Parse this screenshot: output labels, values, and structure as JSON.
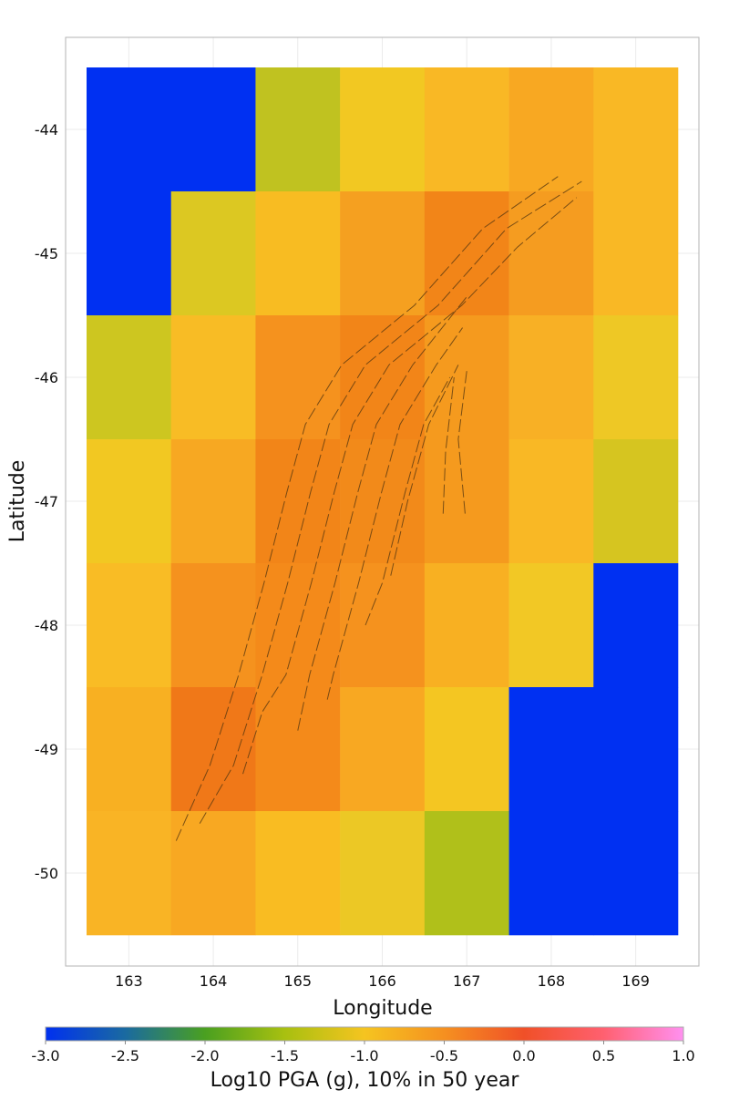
{
  "chart_data": {
    "type": "heatmap",
    "xlabel": "Longitude",
    "ylabel": "Latitude",
    "x": [
      163,
      164,
      165,
      166,
      167,
      168,
      169
    ],
    "y": [
      -44,
      -45,
      -46,
      -47,
      -48,
      -49,
      -50
    ],
    "xlim": [
      162.5,
      169.5
    ],
    "ylim": [
      -50.5,
      -43.5
    ],
    "x_ticks": [
      "163",
      "164",
      "165",
      "166",
      "167",
      "168",
      "169"
    ],
    "y_ticks": [
      "-44",
      "-45",
      "-46",
      "-47",
      "-48",
      "-49",
      "-50"
    ],
    "grid": true,
    "values": [
      [
        -3.0,
        -3.0,
        -1.3,
        -1.0,
        -0.85,
        -0.7,
        -0.85
      ],
      [
        -3.0,
        -1.15,
        -0.9,
        -0.65,
        -0.4,
        -0.6,
        -0.85
      ],
      [
        -1.25,
        -0.9,
        -0.55,
        -0.45,
        -0.6,
        -0.8,
        -1.05
      ],
      [
        -1.0,
        -0.72,
        -0.45,
        -0.5,
        -0.6,
        -0.85,
        -1.2
      ],
      [
        -0.88,
        -0.55,
        -0.5,
        -0.55,
        -0.78,
        -1.0,
        -3.0
      ],
      [
        -0.78,
        -0.35,
        -0.5,
        -0.72,
        -1.0,
        -3.0,
        -3.0
      ],
      [
        -0.82,
        -0.72,
        -0.9,
        -1.05,
        -1.4,
        -3.0,
        -3.0
      ]
    ],
    "colors": [
      [
        "#0030f2",
        "#0030f2",
        "#c0c220",
        "#f2c822",
        "#f9b825",
        "#f8a822",
        "#f9b825"
      ],
      [
        "#0030f2",
        "#dcc822",
        "#f8bc22",
        "#f5a020",
        "#f28518",
        "#f59c20",
        "#f9b825"
      ],
      [
        "#cdc620",
        "#f8bc25",
        "#f5921e",
        "#f28518",
        "#f59a1e",
        "#f8b025",
        "#eec825"
      ],
      [
        "#f2c822",
        "#f7a822",
        "#f28518",
        "#f28a1a",
        "#f59a1e",
        "#f9b825",
        "#d6c520"
      ],
      [
        "#f9bc25",
        "#f5921e",
        "#f48a1a",
        "#f5921e",
        "#f8b022",
        "#f2c825",
        "#0030f2"
      ],
      [
        "#f8b022",
        "#f07818",
        "#f48a1a",
        "#f8a822",
        "#f4c622",
        "#0030f2",
        "#0030f2"
      ],
      [
        "#f9b425",
        "#f8a822",
        "#f9bc22",
        "#ecc825",
        "#b0c01a",
        "#0030f2",
        "#0030f2"
      ]
    ],
    "fault_traces": [
      [
        [
          163.56,
          -49.74
        ],
        [
          163.96,
          -49.13
        ],
        [
          164.3,
          -48.4
        ],
        [
          164.6,
          -47.66
        ],
        [
          164.87,
          -46.93
        ],
        [
          165.09,
          -46.38
        ],
        [
          165.52,
          -45.9
        ],
        [
          166.38,
          -45.42
        ],
        [
          167.19,
          -44.8
        ],
        [
          168.08,
          -44.38
        ]
      ],
      [
        [
          163.84,
          -49.6
        ],
        [
          164.24,
          -49.13
        ],
        [
          164.58,
          -48.4
        ],
        [
          164.88,
          -47.66
        ],
        [
          165.15,
          -46.93
        ],
        [
          165.37,
          -46.38
        ],
        [
          165.8,
          -45.9
        ],
        [
          166.66,
          -45.42
        ],
        [
          167.47,
          -44.8
        ],
        [
          168.36,
          -44.42
        ]
      ],
      [
        [
          164.35,
          -49.2
        ],
        [
          164.58,
          -48.7
        ],
        [
          164.86,
          -48.4
        ],
        [
          165.16,
          -47.66
        ],
        [
          165.43,
          -46.93
        ],
        [
          165.65,
          -46.38
        ],
        [
          166.08,
          -45.9
        ],
        [
          166.94,
          -45.42
        ],
        [
          167.6,
          -44.95
        ],
        [
          168.3,
          -44.55
        ]
      ],
      [
        [
          165.0,
          -48.85
        ],
        [
          165.14,
          -48.4
        ],
        [
          165.44,
          -47.66
        ],
        [
          165.71,
          -46.93
        ],
        [
          165.93,
          -46.38
        ],
        [
          166.36,
          -45.9
        ],
        [
          167.0,
          -45.35
        ]
      ],
      [
        [
          165.35,
          -48.6
        ],
        [
          165.42,
          -48.4
        ],
        [
          165.72,
          -47.66
        ],
        [
          165.99,
          -46.93
        ],
        [
          166.21,
          -46.38
        ],
        [
          166.64,
          -45.9
        ],
        [
          166.95,
          -45.6
        ]
      ],
      [
        [
          165.8,
          -48.0
        ],
        [
          166.0,
          -47.66
        ],
        [
          166.27,
          -46.93
        ],
        [
          166.49,
          -46.38
        ],
        [
          166.8,
          -46.0
        ]
      ],
      [
        [
          166.1,
          -47.6
        ],
        [
          166.3,
          -47.0
        ],
        [
          166.55,
          -46.38
        ],
        [
          166.9,
          -45.9
        ]
      ],
      [
        [
          166.72,
          -47.1
        ],
        [
          166.75,
          -46.6
        ],
        [
          166.85,
          -46.0
        ]
      ],
      [
        [
          166.98,
          -47.1
        ],
        [
          166.9,
          -46.5
        ],
        [
          167.0,
          -45.95
        ]
      ]
    ],
    "colorbar": {
      "title": "Log10 PGA (g), 10% in 50 year",
      "range": [
        -3.0,
        1.0
      ],
      "tick_labels": [
        "-3.0",
        "-2.5",
        "-2.0",
        "-1.5",
        "-1.0",
        "-0.5",
        "0.0",
        "0.5",
        "1.0"
      ],
      "stops": [
        "#0030f0",
        "#1a6aa0",
        "#4aa020",
        "#a8c010",
        "#f5c420",
        "#f59020",
        "#f05028",
        "#ff6070",
        "#ff90f0"
      ],
      "placement": "bottom"
    }
  }
}
